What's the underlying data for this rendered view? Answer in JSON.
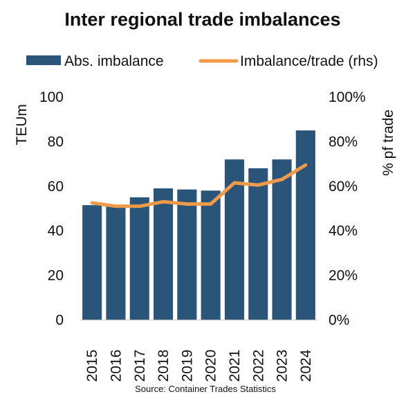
{
  "chart_data": {
    "type": "bar",
    "title": "Inter regional trade imbalances",
    "categories": [
      "2015",
      "2016",
      "2017",
      "2018",
      "2019",
      "2020",
      "2021",
      "2022",
      "2023",
      "2024"
    ],
    "series": [
      {
        "name": "Abs. imbalance",
        "type": "bar",
        "axis": "left",
        "color": "#2a5578",
        "values": [
          51.5,
          51.5,
          55,
          59,
          58.5,
          58,
          72,
          68,
          72,
          85
        ]
      },
      {
        "name": "Imbalance/trade (rhs)",
        "type": "line",
        "axis": "right",
        "color": "#ef9a4a",
        "values": [
          0.525,
          0.51,
          0.51,
          0.53,
          0.52,
          0.52,
          0.615,
          0.605,
          0.63,
          0.695
        ]
      }
    ],
    "ylabel": "TEUm",
    "ylim": [
      0,
      100
    ],
    "yticks": [
      "0",
      "20",
      "40",
      "60",
      "80",
      "100"
    ],
    "y2label": "% pf trade",
    "y2lim": [
      0,
      1
    ],
    "y2ticks": [
      "0%",
      "20%",
      "40%",
      "60%",
      "80%",
      "100%"
    ],
    "legend_position": "top",
    "grid": false,
    "source": "Source: Container Trades Statistics"
  }
}
